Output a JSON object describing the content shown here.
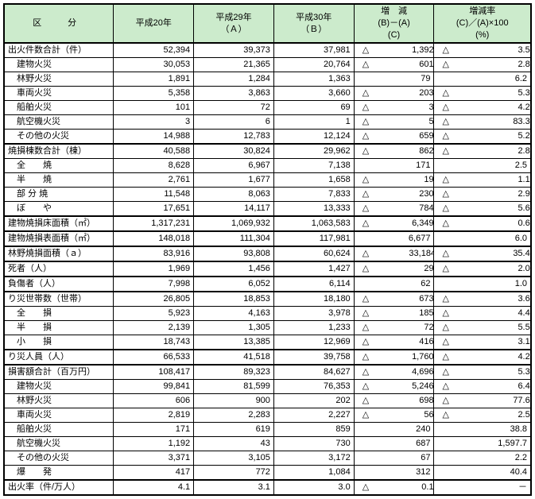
{
  "headers": {
    "category": "区　分",
    "y1": "平成20年",
    "y2_l1": "平成29年",
    "y2_l2": "（Ａ）",
    "y3_l1": "平成30年",
    "y3_l2": "（Ｂ）",
    "d_l1": "増　減",
    "d_l2": "(B)－(A)",
    "d_l3": "(C)",
    "r_l1": "増減率",
    "r_l2": "(C)／(A)×100",
    "r_l3": "(%)"
  },
  "rows": [
    {
      "cat": "出火件数合計（件）",
      "y1": "52,394",
      "y2": "39,373",
      "y3": "37,981",
      "d": "△ 1,392",
      "r": "△ 3.5",
      "sect": true
    },
    {
      "cat": "　建物火災",
      "y1": "30,053",
      "y2": "21,365",
      "y3": "20,764",
      "d": "△ 601",
      "r": "△ 2.8"
    },
    {
      "cat": "　林野火災",
      "y1": "1,891",
      "y2": "1,284",
      "y3": "1,363",
      "d": "79",
      "r": "6.2"
    },
    {
      "cat": "　車両火災",
      "y1": "5,358",
      "y2": "3,863",
      "y3": "3,660",
      "d": "△ 203",
      "r": "△ 5.3"
    },
    {
      "cat": "　船舶火災",
      "y1": "101",
      "y2": "72",
      "y3": "69",
      "d": "△ 3",
      "r": "△ 4.2"
    },
    {
      "cat": "　航空機火災",
      "y1": "3",
      "y2": "6",
      "y3": "1",
      "d": "△ 5",
      "r": "△ 83.3"
    },
    {
      "cat": "　その他の火災",
      "y1": "14,988",
      "y2": "12,783",
      "y3": "12,124",
      "d": "△ 659",
      "r": "△ 5.2"
    },
    {
      "cat": "焼損棟数合計（棟）",
      "y1": "40,588",
      "y2": "30,824",
      "y3": "29,962",
      "d": "△ 862",
      "r": "△ 2.8",
      "sect": true
    },
    {
      "cat": "　全　　焼",
      "y1": "8,628",
      "y2": "6,967",
      "y3": "7,138",
      "d": "171",
      "r": "2.5"
    },
    {
      "cat": "　半　　焼",
      "y1": "2,761",
      "y2": "1,677",
      "y3": "1,658",
      "d": "△ 19",
      "r": "△ 1.1"
    },
    {
      "cat": "　部 分 焼",
      "y1": "11,548",
      "y2": "8,063",
      "y3": "7,833",
      "d": "△ 230",
      "r": "△ 2.9"
    },
    {
      "cat": "　ぼ　　や",
      "y1": "17,651",
      "y2": "14,117",
      "y3": "13,333",
      "d": "△ 784",
      "r": "△ 5.6"
    },
    {
      "cat": "建物焼損床面積（㎡）",
      "y1": "1,317,231",
      "y2": "1,069,932",
      "y3": "1,063,583",
      "d": "△ 6,349",
      "r": "△ 0.6",
      "sect": true
    },
    {
      "cat": "建物焼損表面積（㎡）",
      "y1": "148,018",
      "y2": "111,304",
      "y3": "117,981",
      "d": "6,677",
      "r": "6.0",
      "sect": true
    },
    {
      "cat": "林野焼損面積（ａ）",
      "y1": "83,916",
      "y2": "93,808",
      "y3": "60,624",
      "d": "△ 33,184",
      "r": "△ 35.4",
      "sect": true
    },
    {
      "cat": "死者（人）",
      "y1": "1,969",
      "y2": "1,456",
      "y3": "1,427",
      "d": "△ 29",
      "r": "△ 2.0",
      "sect": true
    },
    {
      "cat": "負傷者（人）",
      "y1": "7,998",
      "y2": "6,052",
      "y3": "6,114",
      "d": "62",
      "r": "1.0",
      "sect": true
    },
    {
      "cat": "り災世帯数（世帯）",
      "y1": "26,805",
      "y2": "18,853",
      "y3": "18,180",
      "d": "△ 673",
      "r": "△ 3.6",
      "sect": true
    },
    {
      "cat": "　全　　損",
      "y1": "5,923",
      "y2": "4,163",
      "y3": "3,978",
      "d": "△ 185",
      "r": "△ 4.4"
    },
    {
      "cat": "　半　　損",
      "y1": "2,139",
      "y2": "1,305",
      "y3": "1,233",
      "d": "△ 72",
      "r": "△ 5.5"
    },
    {
      "cat": "　小　　損",
      "y1": "18,743",
      "y2": "13,385",
      "y3": "12,969",
      "d": "△ 416",
      "r": "△ 3.1"
    },
    {
      "cat": "り災人員（人）",
      "y1": "66,533",
      "y2": "41,518",
      "y3": "39,758",
      "d": "△ 1,760",
      "r": "△ 4.2",
      "sect": true
    },
    {
      "cat": "損害額合計（百万円）",
      "y1": "108,417",
      "y2": "89,323",
      "y3": "84,627",
      "d": "△ 4,696",
      "r": "△ 5.3",
      "sect": true
    },
    {
      "cat": "　建物火災",
      "y1": "99,841",
      "y2": "81,599",
      "y3": "76,353",
      "d": "△ 5,246",
      "r": "△ 6.4"
    },
    {
      "cat": "　林野火災",
      "y1": "606",
      "y2": "900",
      "y3": "202",
      "d": "△ 698",
      "r": "△ 77.6"
    },
    {
      "cat": "　車両火災",
      "y1": "2,819",
      "y2": "2,283",
      "y3": "2,227",
      "d": "△ 56",
      "r": "△ 2.5"
    },
    {
      "cat": "　船舶火災",
      "y1": "171",
      "y2": "619",
      "y3": "859",
      "d": "240",
      "r": "38.8"
    },
    {
      "cat": "　航空機火災",
      "y1": "1,192",
      "y2": "43",
      "y3": "730",
      "d": "687",
      "r": "1,597.7"
    },
    {
      "cat": "　その他の火災",
      "y1": "3,371",
      "y2": "3,105",
      "y3": "3,172",
      "d": "67",
      "r": "2.2"
    },
    {
      "cat": "　爆　　発",
      "y1": "417",
      "y2": "772",
      "y3": "1,084",
      "d": "312",
      "r": "40.4"
    },
    {
      "cat": "出火率（件/万人）",
      "y1": "4.1",
      "y2": "3.1",
      "y3": "3.0",
      "d": "△ 0.1",
      "r": "－",
      "sect": true,
      "last": true
    }
  ]
}
